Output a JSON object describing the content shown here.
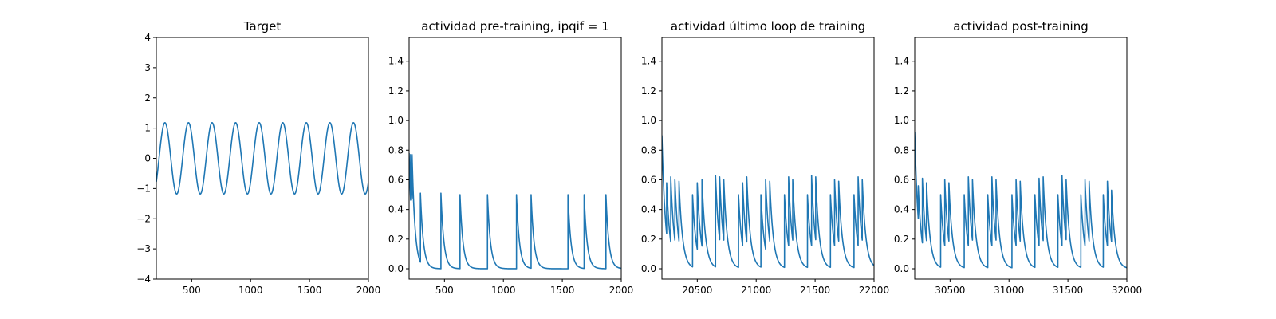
{
  "figure": {
    "background": "#ffffff",
    "line_color": "#1f77b4"
  },
  "chart_data": [
    {
      "type": "line",
      "title": "Target",
      "xlabel": "",
      "ylabel": "",
      "xlim": [
        200,
        2000
      ],
      "ylim": [
        -4,
        4
      ],
      "xticks": [
        500,
        1000,
        1500,
        2000
      ],
      "yticks": [
        -4,
        -3,
        -2,
        -1,
        0,
        1,
        2,
        3,
        4
      ],
      "grid": false,
      "series": [
        {
          "signal": "sine",
          "amplitude": 1.18,
          "period": 200,
          "peaks_x": [
            273,
            473,
            673,
            873,
            1073,
            1273,
            1473,
            1673,
            1873
          ],
          "troughs_x": [
            373,
            573,
            773,
            973,
            1173,
            1373,
            1573,
            1773,
            1973
          ],
          "y_at_start": -0.7,
          "y_at_end": -0.72
        }
      ]
    },
    {
      "type": "line",
      "title": "actividad pre-training, ipqif = 1",
      "xlabel": "",
      "ylabel": "",
      "xlim": [
        200,
        2000
      ],
      "ylim": [
        -0.07,
        1.56
      ],
      "xticks": [
        500,
        1000,
        1500,
        2000
      ],
      "yticks": [
        0.0,
        0.2,
        0.4,
        0.6,
        0.8,
        1.0,
        1.2,
        1.4
      ],
      "ytick_labels": [
        "0.0",
        "0.2",
        "0.4",
        "0.6",
        "0.8",
        "1.0",
        "1.2",
        "1.4"
      ],
      "grid": false,
      "series": [
        {
          "signal": "decaying spikes",
          "initial_value": 0.78,
          "decay_time": 25,
          "spike_times": [
            213,
            225,
            296,
            470,
            632,
            865,
            1111,
            1235,
            1548,
            1685,
            1870
          ],
          "spike_heights": [
            0.77,
            0.77,
            0.51,
            0.51,
            0.5,
            0.5,
            0.5,
            0.5,
            0.5,
            0.5,
            0.5
          ],
          "y_at_end": 0.0
        }
      ]
    },
    {
      "type": "line",
      "title": "actividad último loop de training",
      "xlabel": "",
      "ylabel": "",
      "xlim": [
        20200,
        22000
      ],
      "ylim": [
        -0.07,
        1.56
      ],
      "xticks": [
        20500,
        21000,
        21500,
        22000
      ],
      "yticks": [
        0.0,
        0.2,
        0.4,
        0.6,
        0.8,
        1.0,
        1.2,
        1.4
      ],
      "ytick_labels": [
        "0.0",
        "0.2",
        "0.4",
        "0.6",
        "0.8",
        "1.0",
        "1.2",
        "1.4"
      ],
      "grid": false,
      "series": [
        {
          "signal": "decaying spikes",
          "initial_value": 0.9,
          "decay_time": 30,
          "spike_times": [
            20240,
            20275,
            20310,
            20345,
            20460,
            20500,
            20540,
            20655,
            20690,
            20725,
            20850,
            20885,
            20920,
            21040,
            21080,
            21115,
            21240,
            21275,
            21310,
            21435,
            21470,
            21505,
            21630,
            21665,
            21700,
            21830,
            21865,
            21900
          ],
          "spike_heights": [
            0.58,
            0.62,
            0.6,
            0.59,
            0.5,
            0.58,
            0.6,
            0.63,
            0.62,
            0.6,
            0.5,
            0.58,
            0.62,
            0.5,
            0.6,
            0.59,
            0.5,
            0.62,
            0.6,
            0.5,
            0.63,
            0.62,
            0.5,
            0.6,
            0.59,
            0.5,
            0.62,
            0.6
          ],
          "y_at_end": 0.02
        }
      ]
    },
    {
      "type": "line",
      "title": "actividad post-training",
      "xlabel": "",
      "ylabel": "",
      "xlim": [
        30200,
        32000
      ],
      "ylim": [
        -0.07,
        1.56
      ],
      "xticks": [
        30500,
        31000,
        31500,
        32000
      ],
      "yticks": [
        0.0,
        0.2,
        0.4,
        0.6,
        0.8,
        1.0,
        1.2,
        1.4
      ],
      "ytick_labels": [
        "0.0",
        "0.2",
        "0.4",
        "0.6",
        "0.8",
        "1.0",
        "1.2",
        "1.4"
      ],
      "grid": false,
      "series": [
        {
          "signal": "decaying spikes",
          "initial_value": 0.92,
          "decay_time": 30,
          "spike_times": [
            30230,
            30265,
            30300,
            30420,
            30455,
            30490,
            30620,
            30655,
            30690,
            30820,
            30855,
            30890,
            31025,
            31060,
            31095,
            31220,
            31255,
            31290,
            31415,
            31450,
            31485,
            31610,
            31645,
            31680,
            31800,
            31835,
            31870
          ],
          "spike_heights": [
            0.56,
            0.61,
            0.58,
            0.5,
            0.6,
            0.58,
            0.5,
            0.62,
            0.6,
            0.5,
            0.62,
            0.6,
            0.5,
            0.6,
            0.59,
            0.5,
            0.61,
            0.62,
            0.5,
            0.63,
            0.6,
            0.5,
            0.6,
            0.59,
            0.5,
            0.59,
            0.53
          ],
          "y_at_end": 0.04
        }
      ]
    }
  ]
}
